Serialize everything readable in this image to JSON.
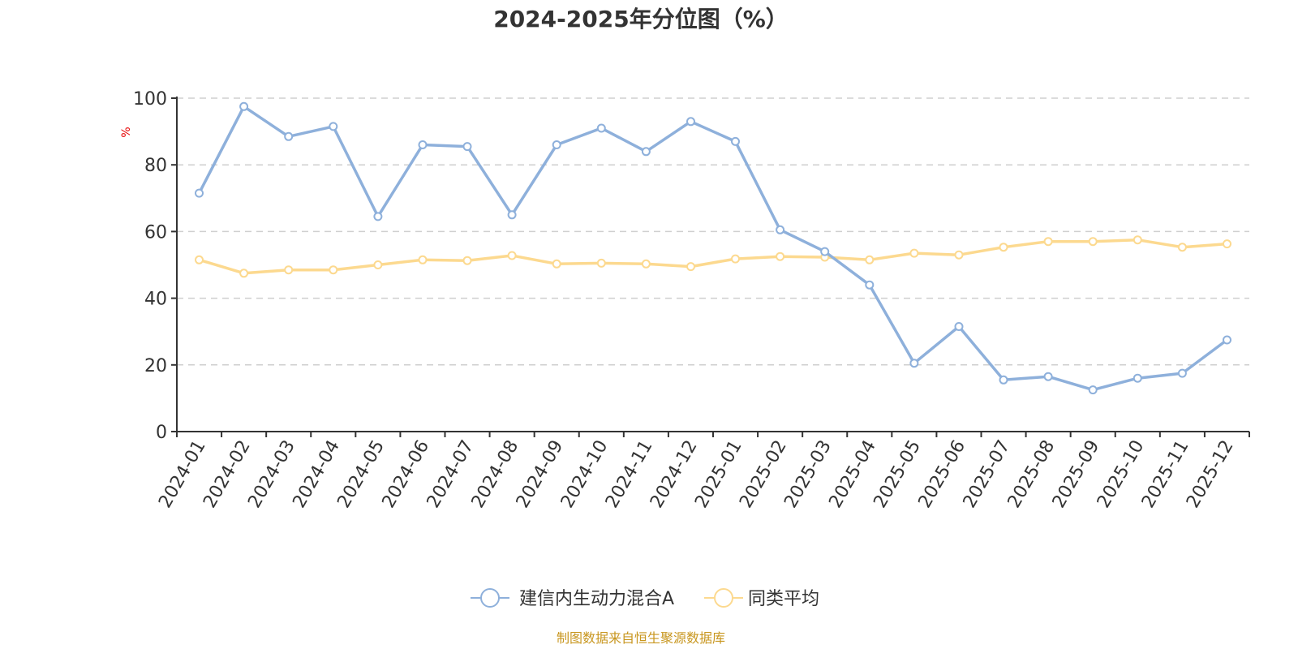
{
  "chart_data": {
    "type": "line",
    "title": "2024-2025年分位图（%）",
    "ylabel": "%",
    "xlabel": "",
    "ylim": [
      0,
      100
    ],
    "yticks": [
      0,
      20,
      40,
      60,
      80,
      100
    ],
    "grid": true,
    "legend_position": "bottom",
    "categories": [
      "2024-01",
      "2024-02",
      "2024-03",
      "2024-04",
      "2024-05",
      "2024-06",
      "2024-07",
      "2024-08",
      "2024-09",
      "2024-10",
      "2024-11",
      "2024-12",
      "2025-01",
      "2025-02",
      "2025-03",
      "2025-04",
      "2025-05",
      "2025-06",
      "2025-07",
      "2025-08",
      "2025-09",
      "2025-10",
      "2025-11",
      "2025-12"
    ],
    "series": [
      {
        "name": "建信内生动力混合A",
        "color": "#8eb0db",
        "values": [
          71.5,
          97.5,
          88.5,
          91.5,
          64.5,
          86,
          85.5,
          65,
          86,
          91,
          84,
          93,
          87,
          60.5,
          54,
          44,
          20.5,
          31.5,
          15.5,
          16.5,
          12.5,
          16,
          17.5,
          27.5
        ]
      },
      {
        "name": "同类平均",
        "color": "#fcd98f",
        "values": [
          51.5,
          47.5,
          48.5,
          48.5,
          50,
          51.5,
          51.3,
          52.8,
          50.3,
          50.5,
          50.3,
          49.5,
          51.8,
          52.5,
          52.3,
          51.5,
          53.5,
          53,
          55.3,
          57,
          57,
          57.5,
          55.3,
          56.3
        ]
      }
    ]
  },
  "source_text": "制图数据来自恒生聚源数据库"
}
